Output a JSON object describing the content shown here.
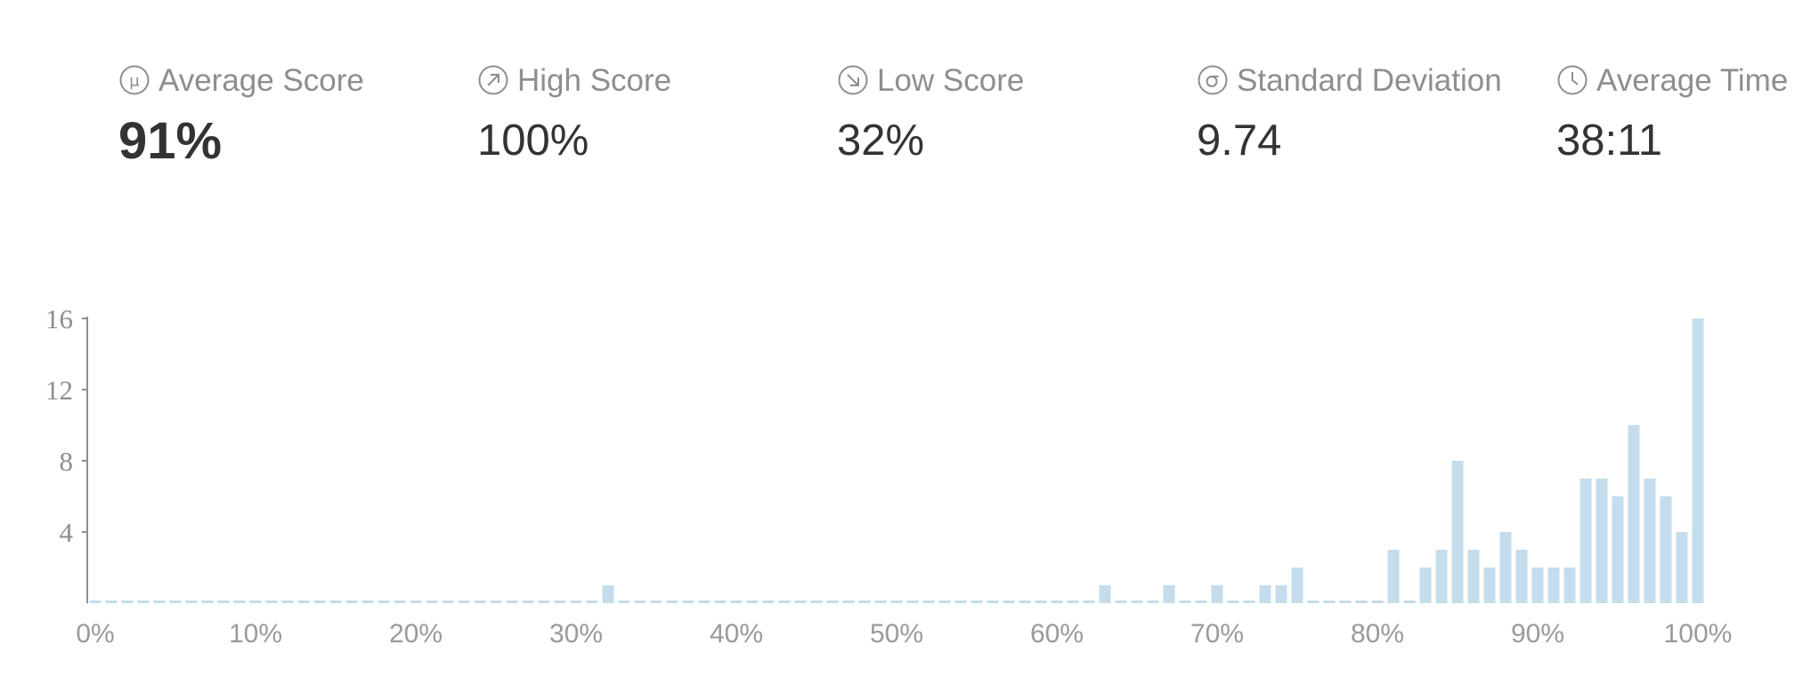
{
  "stats": [
    {
      "label": "Average Score",
      "value": "91%",
      "icon": "mu-circle-icon"
    },
    {
      "label": "High Score",
      "value": "100%",
      "icon": "arrow-up-right-circle-icon"
    },
    {
      "label": "Low Score",
      "value": "32%",
      "icon": "arrow-down-right-circle-icon"
    },
    {
      "label": "Standard Deviation",
      "value": "9.74",
      "icon": "sigma-circle-icon"
    },
    {
      "label": "Average Time",
      "value": "38:11",
      "icon": "clock-icon"
    }
  ],
  "colors": {
    "bar": "#c4dcec",
    "axis": "#8e8e8e",
    "label": "#8e8e8e",
    "value": "#333333"
  },
  "chart_data": {
    "type": "bar",
    "title": "",
    "xlabel": "",
    "ylabel": "",
    "x_ticks": [
      "0%",
      "10%",
      "20%",
      "30%",
      "40%",
      "50%",
      "60%",
      "70%",
      "80%",
      "90%",
      "100%"
    ],
    "y_ticks": [
      4,
      8,
      12,
      16
    ],
    "xlim": [
      0,
      100
    ],
    "ylim": [
      0,
      16
    ],
    "grid": false,
    "x": [
      0,
      1,
      2,
      3,
      4,
      5,
      6,
      7,
      8,
      9,
      10,
      11,
      12,
      13,
      14,
      15,
      16,
      17,
      18,
      19,
      20,
      21,
      22,
      23,
      24,
      25,
      26,
      27,
      28,
      29,
      30,
      31,
      32,
      33,
      34,
      35,
      36,
      37,
      38,
      39,
      40,
      41,
      42,
      43,
      44,
      45,
      46,
      47,
      48,
      49,
      50,
      51,
      52,
      53,
      54,
      55,
      56,
      57,
      58,
      59,
      60,
      61,
      62,
      63,
      64,
      65,
      66,
      67,
      68,
      69,
      70,
      71,
      72,
      73,
      74,
      75,
      76,
      77,
      78,
      79,
      80,
      81,
      82,
      83,
      84,
      85,
      86,
      87,
      88,
      89,
      90,
      91,
      92,
      93,
      94,
      95,
      96,
      97,
      98,
      99,
      100
    ],
    "values": [
      0,
      0,
      0,
      0,
      0,
      0,
      0,
      0,
      0,
      0,
      0,
      0,
      0,
      0,
      0,
      0,
      0,
      0,
      0,
      0,
      0,
      0,
      0,
      0,
      0,
      0,
      0,
      0,
      0,
      0,
      0,
      0,
      1,
      0,
      0,
      0,
      0,
      0,
      0,
      0,
      0,
      0,
      0,
      0,
      0,
      0,
      0,
      0,
      0,
      0,
      0,
      0,
      0,
      0,
      0,
      0,
      0,
      0,
      0,
      0,
      0,
      0,
      0,
      1,
      0,
      0,
      0,
      1,
      0,
      0,
      1,
      0,
      0,
      1,
      1,
      2,
      0,
      0,
      0,
      0,
      0,
      3,
      0,
      2,
      3,
      8,
      3,
      2,
      4,
      3,
      2,
      2,
      2,
      7,
      7,
      6,
      10,
      7,
      6,
      4,
      16
    ]
  }
}
